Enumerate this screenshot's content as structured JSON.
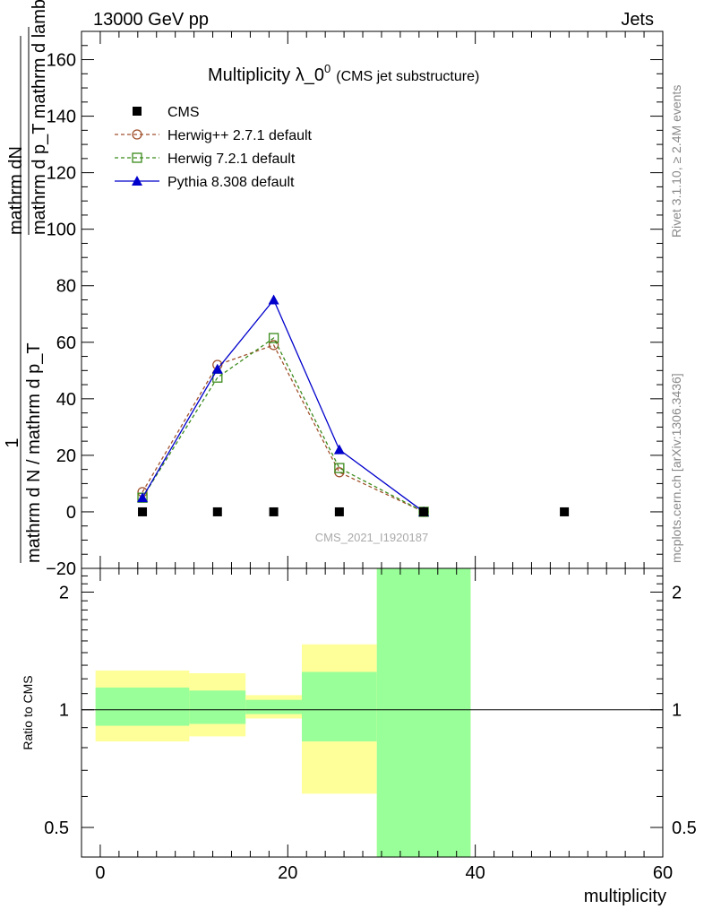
{
  "header": {
    "left": "13000 GeV pp",
    "right": "Jets"
  },
  "side_labels": {
    "rivet": "Rivet 3.1.10, ≥ 2.4M events",
    "mcplots": "mcplots.cern.ch [arXiv:1306.3436]"
  },
  "chart_data": [
    {
      "type": "line",
      "title": "Multiplicity λ_0",
      "title_superscript": "0",
      "subtitle": "(CMS jet substructure)",
      "watermark": "CMS_2021_I1920187",
      "ylabel_numerator": "mathrm dN",
      "ylabel_denominator": "mathrm d p_T mathrm d lambda",
      "ylabel_denominator_subscript": "T",
      "ylabel_prefix_numerator": "1",
      "ylabel_prefix_denominator": "mathrm d N / mathrm d p_T",
      "xlim": [
        -2,
        60
      ],
      "ylim": [
        -20,
        170
      ],
      "yticks": [
        -20,
        0,
        20,
        40,
        60,
        80,
        100,
        120,
        140,
        160
      ],
      "legend_position": "top-left",
      "x": [
        4.5,
        12.5,
        18.5,
        25.5,
        34.5,
        49.5
      ],
      "series": [
        {
          "name": "CMS",
          "marker": "square-filled",
          "color": "#000000",
          "line": "none",
          "x": [
            4.5,
            12.5,
            18.5,
            25.5,
            34.5,
            49.5
          ],
          "values": [
            0,
            0,
            0,
            0,
            0,
            0
          ]
        },
        {
          "name": "Herwig++ 2.7.1 default",
          "marker": "circle-open",
          "color": "#a0522d",
          "line": "dashed",
          "x": [
            4.5,
            12.5,
            18.5,
            25.5,
            34.5
          ],
          "values": [
            7,
            52,
            59,
            14,
            0
          ]
        },
        {
          "name": "Herwig 7.2.1 default",
          "marker": "square-open",
          "color": "#3a8a1a",
          "line": "dashed",
          "x": [
            4.5,
            12.5,
            18.5,
            25.5,
            34.5
          ],
          "values": [
            5,
            47.5,
            61.5,
            15.5,
            0
          ]
        },
        {
          "name": "Pythia 8.308 default",
          "marker": "triangle-filled",
          "color": "#0000cc",
          "line": "solid",
          "x": [
            4.5,
            12.5,
            18.5,
            25.5,
            34.5
          ],
          "values": [
            5,
            50.5,
            75,
            22,
            0
          ]
        }
      ]
    },
    {
      "type": "area",
      "ylabel": "Ratio to CMS",
      "xlabel": "multiplicity",
      "xlim": [
        -2,
        60
      ],
      "xticks": [
        0,
        20,
        40,
        60
      ],
      "ylim": [
        0.42,
        2.3
      ],
      "ylog": true,
      "yticks": [
        0.5,
        1,
        2
      ],
      "reference_line": 1,
      "bands": [
        {
          "x_low": -0.5,
          "x_high": 9.5,
          "yellow": [
            0.83,
            1.26
          ],
          "green": [
            0.91,
            1.14
          ]
        },
        {
          "x_low": 9.5,
          "x_high": 15.5,
          "yellow": [
            0.855,
            1.24
          ],
          "green": [
            0.92,
            1.12
          ]
        },
        {
          "x_low": 15.5,
          "x_high": 21.5,
          "yellow": [
            0.95,
            1.09
          ],
          "green": [
            0.975,
            1.06
          ]
        },
        {
          "x_low": 21.5,
          "x_high": 29.5,
          "yellow": [
            0.61,
            1.47
          ],
          "green": [
            0.83,
            1.25
          ]
        },
        {
          "x_low": 29.5,
          "x_high": 39.5,
          "yellow": [
            0.42,
            2.3
          ],
          "green": [
            0.42,
            2.3
          ]
        }
      ]
    }
  ]
}
